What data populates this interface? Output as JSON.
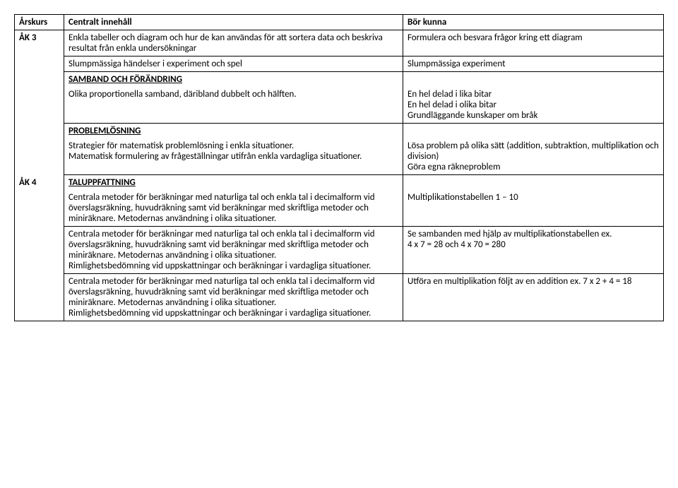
{
  "headers": {
    "year": "Årskurs",
    "content": "Centralt innehåll",
    "know": "Bör kunna"
  },
  "rows": [
    {
      "year": "ÅK 3",
      "content": "Enkla tabeller och diagram och hur de kan användas för att sortera data och beskriva resultat från enkla undersökningar",
      "know": "Formulera och besvara frågor kring ett diagram"
    },
    {
      "content": "Slumpmässiga händelser i experiment och spel",
      "know": "Slumpmässiga experiment"
    },
    {
      "section": "SAMBAND OCH FÖRÄNDRING"
    },
    {
      "content": "Olika proportionella samband, däribland dubbelt och hälften.",
      "know": "En hel delad i lika bitar\nEn hel delad i olika bitar\nGrundläggande kunskaper om bråk"
    },
    {
      "section": "PROBLEMLÖSNING"
    },
    {
      "content": "Strategier för matematisk problemlösning i enkla situationer.\nMatematisk formulering av frågeställningar utifrån enkla vardagliga situationer.",
      "know": "Lösa problem på olika sätt (addition, subtraktion, multiplikation och division)\nGöra egna räkneproblem"
    },
    {
      "year": "ÅK 4",
      "section": "TALUPPFATTNING"
    },
    {
      "content": "Centrala metoder för beräkningar med naturliga tal och enkla tal i decimalform vid överslagsräkning, huvudräkning samt vid beräkningar med skriftliga metoder och miniräknare. Metodernas användning i olika situationer.",
      "know": "Multiplikationstabellen 1 – 10"
    },
    {
      "content": "Centrala metoder för beräkningar med naturliga tal och enkla tal i decimalform vid överslagsräkning, huvudräkning samt vid beräkningar med skriftliga metoder och miniräknare. Metodernas användning i olika situationer.\nRimlighetsbedömning vid uppskattningar och beräkningar i vardagliga situationer.",
      "know": "Se sambanden med hjälp av multiplikationstabellen ex.\n 4 x 7 = 28 och 4 x 70 = 280"
    },
    {
      "content": "Centrala metoder för beräkningar med naturliga tal och enkla tal i decimalform vid överslagsräkning, huvudräkning samt vid beräkningar med skriftliga metoder och miniräknare. Metodernas användning i olika situationer.\nRimlighetsbedömning vid uppskattningar och beräkningar i vardagliga situationer.",
      "know": "Utföra en multiplikation följt av en addition ex. 7 x 2 + 4 = 18"
    }
  ]
}
